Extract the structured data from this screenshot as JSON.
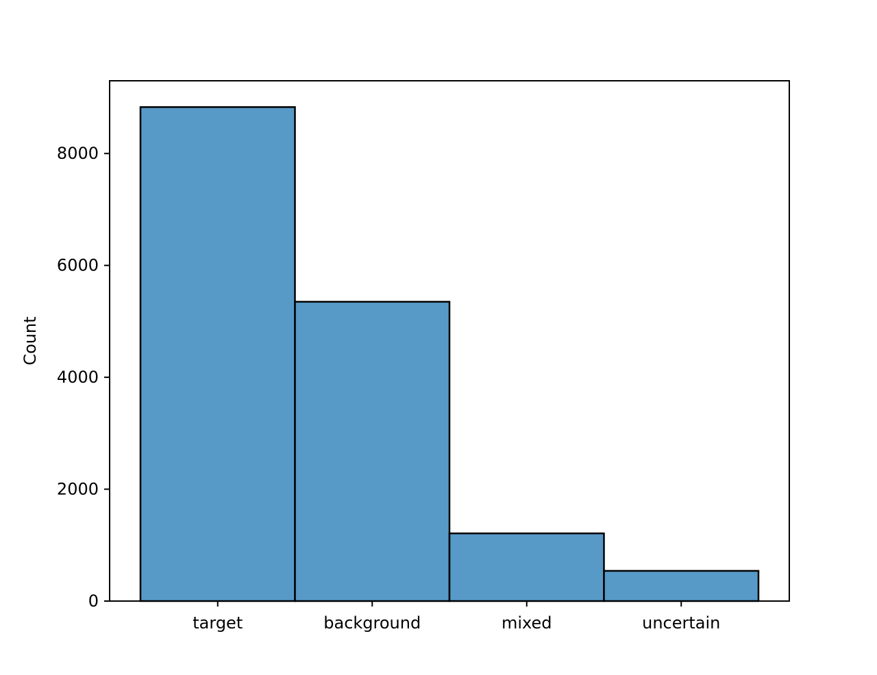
{
  "chart_data": {
    "type": "bar",
    "categories": [
      "target",
      "background",
      "mixed",
      "uncertain"
    ],
    "values": [
      8830,
      5350,
      1210,
      540
    ],
    "xlabel": "",
    "ylabel": "Count",
    "ylim": [
      0,
      9300
    ],
    "yticks": [
      0,
      2000,
      4000,
      6000,
      8000
    ],
    "ytick_labels": [
      "0",
      "2000",
      "4000",
      "6000",
      "8000"
    ],
    "grid": false,
    "legend": "none",
    "bar_color": "#5799c7",
    "edge_color": "#000000"
  }
}
